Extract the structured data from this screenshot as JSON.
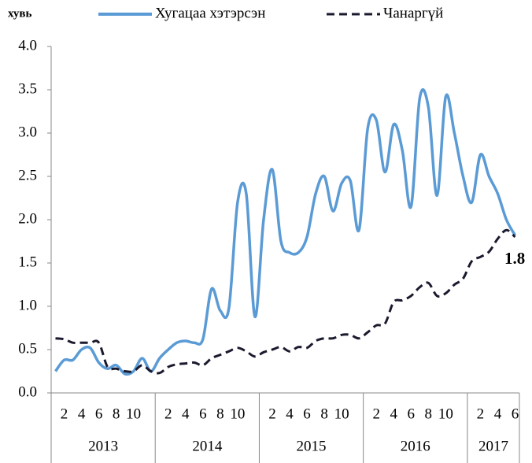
{
  "chart_data": {
    "type": "line",
    "ylabel": "хувь",
    "annotation": "1.8",
    "groups": [
      {
        "label": "2013",
        "categories": [
          null,
          "2",
          null,
          "4",
          null,
          "6",
          null,
          "8",
          null,
          "10",
          null,
          null
        ]
      },
      {
        "label": "2014",
        "categories": [
          null,
          "2",
          null,
          "4",
          null,
          "6",
          null,
          "8",
          null,
          "10",
          null,
          null
        ]
      },
      {
        "label": "2015",
        "categories": [
          null,
          "2",
          null,
          "4",
          null,
          "6",
          null,
          "8",
          null,
          "10",
          null,
          null
        ]
      },
      {
        "label": "2016",
        "categories": [
          null,
          "2",
          null,
          "4",
          null,
          "6",
          null,
          "8",
          null,
          "10",
          null,
          null
        ]
      },
      {
        "label": "2017",
        "categories": [
          null,
          "2",
          null,
          "4",
          null,
          "6"
        ]
      }
    ],
    "series": [
      {
        "name": "Хугацаа хэтэрсэн",
        "color": "#5b9bd5",
        "dash": false,
        "values": [
          0.25,
          0.38,
          0.38,
          0.5,
          0.52,
          0.35,
          0.28,
          0.32,
          0.22,
          0.25,
          0.4,
          0.25,
          0.4,
          0.5,
          0.58,
          0.6,
          0.58,
          0.62,
          1.2,
          0.95,
          0.98,
          2.2,
          2.3,
          0.88,
          2.0,
          2.58,
          1.75,
          1.62,
          1.62,
          1.8,
          2.3,
          2.5,
          2.1,
          2.42,
          2.45,
          1.88,
          3.05,
          3.15,
          2.55,
          3.1,
          2.8,
          2.15,
          3.4,
          3.3,
          2.28,
          3.42,
          3.0,
          2.5,
          2.2,
          2.75,
          2.5,
          2.3,
          2.0,
          1.82
        ]
      },
      {
        "name": "Чанаргүй",
        "color": "#1a1a2e",
        "dash": true,
        "values": [
          0.63,
          0.62,
          0.58,
          0.58,
          0.58,
          0.58,
          0.3,
          0.28,
          0.25,
          0.25,
          0.32,
          0.25,
          0.23,
          0.3,
          0.33,
          0.34,
          0.35,
          0.32,
          0.4,
          0.44,
          0.48,
          0.52,
          0.48,
          0.42,
          0.47,
          0.5,
          0.53,
          0.48,
          0.53,
          0.52,
          0.6,
          0.63,
          0.63,
          0.67,
          0.67,
          0.63,
          0.7,
          0.78,
          0.8,
          1.05,
          1.07,
          1.12,
          1.22,
          1.27,
          1.12,
          1.15,
          1.25,
          1.32,
          1.52,
          1.57,
          1.63,
          1.78,
          1.88,
          1.8
        ]
      }
    ],
    "ylim": [
      0,
      4
    ],
    "yticks": [
      {
        "value": 0,
        "label": "0.0"
      },
      0.5,
      {
        "value": 1,
        "label": "1.0"
      },
      1.5,
      {
        "value": 2,
        "label": "2.0"
      },
      2.5,
      {
        "value": 3,
        "label": "3.0"
      },
      3.5,
      {
        "value": 4,
        "label": "4.0"
      }
    ],
    "grid": false
  }
}
